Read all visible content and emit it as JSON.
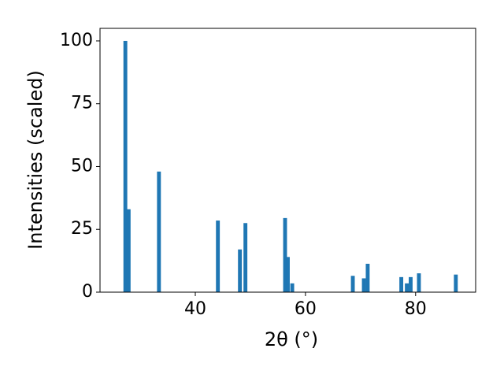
{
  "chart_data": {
    "type": "bar",
    "x_label": "2θ (°)",
    "y_label": "Intensities (scaled)",
    "x": [
      27.3,
      27.9,
      33.4,
      44.1,
      48.1,
      49.1,
      56.3,
      56.8,
      57.6,
      68.6,
      70.6,
      71.3,
      77.4,
      78.4,
      79.1,
      80.6,
      87.3
    ],
    "values": [
      100,
      33,
      48,
      28.5,
      17,
      27.5,
      29.5,
      14,
      3.5,
      6.5,
      5.5,
      11.3,
      6,
      3.5,
      6,
      7.5,
      7
    ],
    "color": "#1f77b4",
    "xlim": [
      22.7,
      90.9
    ],
    "ylim": [
      0,
      105
    ],
    "xticks": [
      40,
      60,
      80
    ],
    "yticks": [
      0,
      25,
      50,
      75,
      100
    ],
    "grid": false
  }
}
